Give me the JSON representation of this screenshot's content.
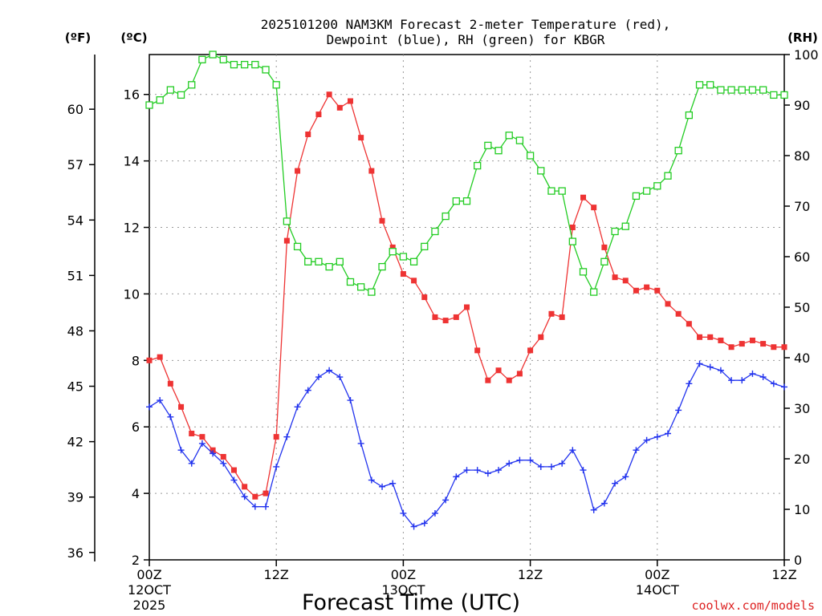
{
  "chart_data": {
    "type": "line",
    "title_line1": "2025101200 NAM3KM Forecast 2-meter Temperature (red),",
    "title_line2": "Dewpoint (blue), RH (green) for KBGR",
    "left_outer_unit": "(ºF)",
    "left_inner_unit": "(ºC)",
    "right_unit": "(RH)",
    "xlabel": "Forecast Time (UTC)",
    "watermark": "coolwx.com/models",
    "xlim": [
      0,
      60
    ],
    "ylim_c": [
      2,
      17.2
    ],
    "ylim_rh": [
      0,
      100
    ],
    "x_ticks": [
      {
        "x": 0,
        "label": "00Z",
        "sub1": "12OCT",
        "sub2": "2025"
      },
      {
        "x": 12,
        "label": "12Z",
        "sub1": "",
        "sub2": ""
      },
      {
        "x": 24,
        "label": "00Z",
        "sub1": "13OCT",
        "sub2": ""
      },
      {
        "x": 36,
        "label": "12Z",
        "sub1": "",
        "sub2": ""
      },
      {
        "x": 48,
        "label": "00Z",
        "sub1": "14OCT",
        "sub2": ""
      },
      {
        "x": 60,
        "label": "12Z",
        "sub1": "",
        "sub2": ""
      }
    ],
    "c_ticks": [
      "2",
      "4",
      "6",
      "8",
      "10",
      "12",
      "14",
      "16"
    ],
    "f_ticks": [
      "36",
      "39",
      "42",
      "45",
      "48",
      "51",
      "54",
      "57",
      "60"
    ],
    "rh_ticks": [
      "0",
      "10",
      "20",
      "30",
      "40",
      "50",
      "60",
      "70",
      "80",
      "90",
      "100"
    ],
    "series": [
      {
        "name": "Temperature (°C)",
        "color": "#ee3333",
        "axis": "c",
        "marker": "filled-square",
        "values": [
          8.0,
          8.1,
          7.3,
          6.6,
          5.8,
          5.7,
          5.3,
          5.1,
          4.7,
          4.2,
          3.9,
          4.0,
          5.7,
          11.6,
          13.7,
          14.8,
          15.4,
          16.0,
          15.6,
          15.8,
          14.7,
          13.7,
          12.2,
          11.4,
          10.6,
          10.4,
          9.9,
          9.3,
          9.2,
          9.3,
          9.6,
          8.3,
          7.4,
          7.7,
          7.4,
          7.6,
          8.3,
          8.7,
          9.4,
          9.3,
          12.0,
          12.9,
          12.6,
          11.4,
          10.5,
          10.4,
          10.1,
          10.2,
          10.1,
          9.7,
          9.4,
          9.1,
          8.7,
          8.7,
          8.6,
          8.4,
          8.5,
          8.6,
          8.5,
          8.4,
          8.4
        ]
      },
      {
        "name": "Dewpoint (°C)",
        "color": "#2233ee",
        "axis": "c",
        "marker": "plus",
        "values": [
          6.6,
          6.8,
          6.3,
          5.3,
          4.9,
          5.5,
          5.2,
          4.9,
          4.4,
          3.9,
          3.6,
          3.6,
          4.8,
          5.7,
          6.6,
          7.1,
          7.5,
          7.7,
          7.5,
          6.8,
          5.5,
          4.4,
          4.2,
          4.3,
          3.4,
          3.0,
          3.1,
          3.4,
          3.8,
          4.5,
          4.7,
          4.7,
          4.6,
          4.7,
          4.9,
          5.0,
          5.0,
          4.8,
          4.8,
          4.9,
          5.3,
          4.7,
          3.5,
          3.7,
          4.3,
          4.5,
          5.3,
          5.6,
          5.7,
          5.8,
          6.5,
          7.3,
          7.9,
          7.8,
          7.7,
          7.4,
          7.4,
          7.6,
          7.5,
          7.3,
          7.2
        ]
      },
      {
        "name": "RH (%)",
        "color": "#22cc22",
        "axis": "rh",
        "marker": "open-square",
        "values": [
          90,
          91,
          93,
          92,
          94,
          99,
          100,
          99,
          98,
          98,
          98,
          97,
          94,
          67,
          62,
          59,
          59,
          58,
          59,
          55,
          54,
          53,
          58,
          61,
          60,
          59,
          62,
          65,
          68,
          71,
          71,
          78,
          82,
          81,
          84,
          83,
          80,
          77,
          73,
          73,
          63,
          57,
          53,
          59,
          65,
          66,
          72,
          73,
          74,
          76,
          81,
          88,
          94,
          94,
          93,
          93,
          93,
          93,
          93,
          92,
          92
        ]
      }
    ]
  }
}
